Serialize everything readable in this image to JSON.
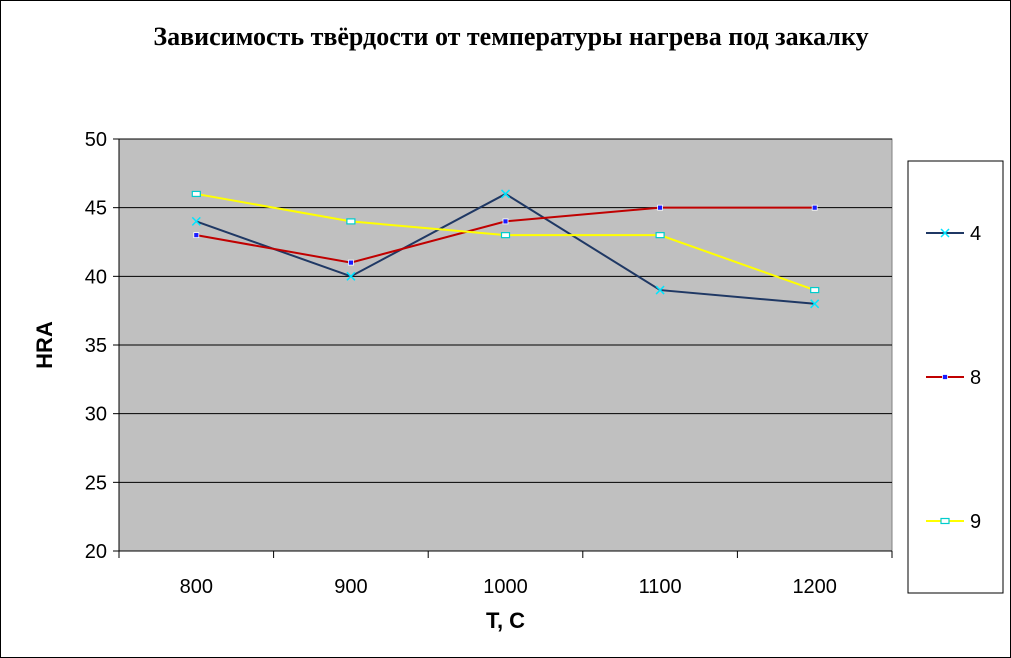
{
  "chart_data": {
    "type": "line",
    "title": "Зависимость твёрдости от температуры нагрева под закалку",
    "xlabel": "T, C",
    "ylabel": "HRA",
    "categories": [
      "800",
      "900",
      "1000",
      "1100",
      "1200"
    ],
    "ylim": [
      20,
      50
    ],
    "yticks": [
      20,
      25,
      30,
      35,
      40,
      45,
      50
    ],
    "grid": "horizontal",
    "legend_position": "right",
    "series": [
      {
        "name": "4",
        "values": [
          44,
          40,
          46,
          39,
          38
        ],
        "color": "#1f3864",
        "marker_color": "#00e5ff",
        "marker": "x"
      },
      {
        "name": "8",
        "values": [
          43,
          41,
          44,
          45,
          45
        ],
        "color": "#c00000",
        "marker_color": "#1a1aff",
        "marker": "square"
      },
      {
        "name": "9",
        "values": [
          46,
          44,
          43,
          43,
          39
        ],
        "color": "#ffff00",
        "marker_color": "#00cccc",
        "marker": "square-open"
      }
    ],
    "plot_background": "#c0c0c0"
  }
}
